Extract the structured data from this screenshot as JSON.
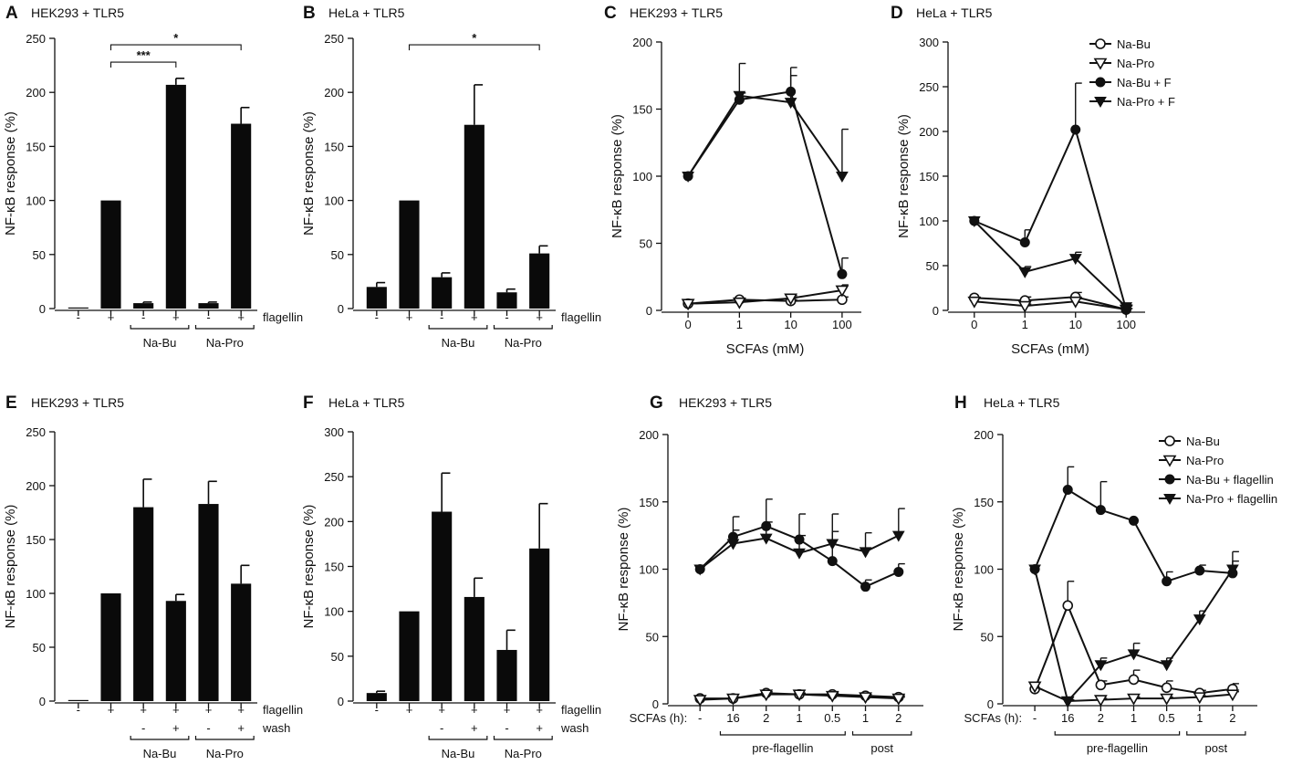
{
  "chart_data": [
    {
      "panel": "A",
      "type": "bar",
      "title": "HEK293 + TLR5",
      "ylabel": "NF-κB response (%)",
      "ylim": [
        0,
        250
      ],
      "yticks": [
        0,
        50,
        100,
        150,
        200,
        250
      ],
      "values": [
        1,
        100,
        5,
        207,
        5,
        171
      ],
      "errors": [
        0,
        0,
        1,
        6,
        1,
        15
      ],
      "rows": [
        {
          "label": "flagellin",
          "values": [
            "-",
            "+",
            "-",
            "+",
            "-",
            "+"
          ]
        }
      ],
      "groups": [
        {
          "label": "Na-Bu",
          "start": 2,
          "end": 3
        },
        {
          "label": "Na-Pro",
          "start": 4,
          "end": 5
        }
      ],
      "significance": [
        {
          "from": 1,
          "to": 3,
          "label": "***",
          "y": 228
        },
        {
          "from": 1,
          "to": 5,
          "label": "*",
          "y": 244
        }
      ]
    },
    {
      "panel": "B",
      "type": "bar",
      "title": "HeLa + TLR5",
      "ylabel": "NF-κB response (%)",
      "ylim": [
        0,
        250
      ],
      "yticks": [
        0,
        50,
        100,
        150,
        200,
        250
      ],
      "values": [
        20,
        100,
        29,
        170,
        15,
        51
      ],
      "errors": [
        4,
        0,
        4,
        37,
        3,
        7
      ],
      "rows": [
        {
          "label": "flagellin",
          "values": [
            "-",
            "+",
            "-",
            "+",
            "-",
            "+"
          ]
        }
      ],
      "groups": [
        {
          "label": "Na-Bu",
          "start": 2,
          "end": 3
        },
        {
          "label": "Na-Pro",
          "start": 4,
          "end": 5
        }
      ],
      "significance": [
        {
          "from": 1,
          "to": 5,
          "label": "*",
          "y": 244
        }
      ]
    },
    {
      "panel": "C",
      "type": "line",
      "title": "HEK293 + TLR5",
      "ylabel": "NF-κB response (%)",
      "xlabel": "SCFAs (mM)",
      "ylim": [
        0,
        200
      ],
      "yticks": [
        0,
        50,
        100,
        150,
        200
      ],
      "categories": [
        "0",
        "1",
        "10",
        "100"
      ],
      "series": [
        {
          "name": "Na-Bu",
          "marker": "circle-open",
          "values": [
            5,
            8,
            7,
            8
          ],
          "errors": [
            0,
            1,
            1,
            2
          ]
        },
        {
          "name": "Na-Pro",
          "marker": "tri-open",
          "values": [
            5,
            6,
            9,
            15
          ],
          "errors": [
            0,
            1,
            2,
            4
          ]
        },
        {
          "name": "Na-Bu + F",
          "marker": "circle-filled",
          "values": [
            100,
            157,
            163,
            27
          ],
          "errors": [
            0,
            5,
            18,
            12
          ]
        },
        {
          "name": "Na-Pro + F",
          "marker": "tri-filled",
          "values": [
            100,
            160,
            155,
            100
          ],
          "errors": [
            0,
            24,
            20,
            35
          ]
        }
      ]
    },
    {
      "panel": "D",
      "type": "line",
      "title": "HeLa + TLR5",
      "ylabel": "NF-κB response (%)",
      "xlabel": "SCFAs (mM)",
      "ylim": [
        0,
        300
      ],
      "yticks": [
        0,
        50,
        100,
        150,
        200,
        250,
        300
      ],
      "categories": [
        "0",
        "1",
        "10",
        "100"
      ],
      "legend": [
        "Na-Bu",
        "Na-Pro",
        "Na-Bu + F",
        "Na-Pro + F"
      ],
      "series": [
        {
          "name": "Na-Bu",
          "marker": "circle-open",
          "values": [
            14,
            11,
            15,
            1
          ],
          "errors": [
            0,
            4,
            5,
            1
          ]
        },
        {
          "name": "Na-Pro",
          "marker": "tri-open",
          "values": [
            10,
            5,
            10,
            1
          ],
          "errors": [
            0,
            2,
            3,
            1
          ]
        },
        {
          "name": "Na-Bu + F",
          "marker": "circle-filled",
          "values": [
            100,
            76,
            202,
            1
          ],
          "errors": [
            0,
            14,
            52,
            4
          ]
        },
        {
          "name": "Na-Pro + F",
          "marker": "tri-filled",
          "values": [
            100,
            43,
            58,
            4
          ],
          "errors": [
            0,
            6,
            7,
            2
          ]
        }
      ]
    },
    {
      "panel": "E",
      "type": "bar",
      "title": "HEK293 + TLR5",
      "ylabel": "NF-κB response (%)",
      "ylim": [
        0,
        250
      ],
      "yticks": [
        0,
        50,
        100,
        150,
        200,
        250
      ],
      "values": [
        1,
        100,
        180,
        93,
        183,
        109
      ],
      "errors": [
        0,
        0,
        26,
        6,
        21,
        17
      ],
      "rows": [
        {
          "label": "flagellin",
          "values": [
            "-",
            "+",
            "+",
            "+",
            "+",
            "+"
          ]
        },
        {
          "label": "wash",
          "values": [
            "",
            "",
            "-",
            "+",
            "-",
            "+"
          ]
        }
      ],
      "groups": [
        {
          "label": "Na-Bu",
          "start": 2,
          "end": 3
        },
        {
          "label": "Na-Pro",
          "start": 4,
          "end": 5
        }
      ]
    },
    {
      "panel": "F",
      "type": "bar",
      "title": "HeLa + TLR5",
      "ylabel": "NF-κB response (%)",
      "ylim": [
        0,
        300
      ],
      "yticks": [
        0,
        50,
        100,
        150,
        200,
        250,
        300
      ],
      "values": [
        9,
        100,
        211,
        116,
        57,
        170
      ],
      "errors": [
        2,
        0,
        43,
        21,
        22,
        50
      ],
      "rows": [
        {
          "label": "flagellin",
          "values": [
            "-",
            "+",
            "+",
            "+",
            "+",
            "+"
          ]
        },
        {
          "label": "wash",
          "values": [
            "",
            "",
            "-",
            "+",
            "-",
            "+"
          ]
        }
      ],
      "groups": [
        {
          "label": "Na-Bu",
          "start": 2,
          "end": 3
        },
        {
          "label": "Na-Pro",
          "start": 4,
          "end": 5
        }
      ]
    },
    {
      "panel": "G",
      "type": "line",
      "title": "HEK293 + TLR5",
      "ylabel": "NF-κB response (%)",
      "xprefix": "SCFAs (h):",
      "ylim": [
        0,
        200
      ],
      "yticks": [
        0,
        50,
        100,
        150,
        200
      ],
      "categories": [
        "-",
        "16",
        "2",
        "1",
        "0.5",
        "1",
        "2"
      ],
      "groups": [
        {
          "label": "pre-flagellin",
          "start": 1,
          "end": 4
        },
        {
          "label": "post",
          "start": 5,
          "end": 6
        }
      ],
      "series": [
        {
          "name": "Na-Bu",
          "marker": "circle-open",
          "values": [
            4,
            4,
            8,
            7,
            7,
            6,
            5
          ],
          "errors": [
            0,
            1,
            1,
            1,
            1,
            1,
            1
          ]
        },
        {
          "name": "Na-Pro",
          "marker": "tri-open",
          "values": [
            3,
            4,
            7,
            7,
            6,
            5,
            4
          ],
          "errors": [
            0,
            1,
            1,
            1,
            1,
            1,
            1
          ]
        },
        {
          "name": "Na-Bu + flagellin",
          "marker": "circle-filled",
          "values": [
            100,
            124,
            132,
            122,
            106,
            87,
            98
          ],
          "errors": [
            0,
            15,
            20,
            19,
            22,
            5,
            6
          ]
        },
        {
          "name": "Na-Pro + flagellin",
          "marker": "tri-filled",
          "values": [
            100,
            119,
            123,
            112,
            119,
            113,
            125
          ],
          "errors": [
            0,
            10,
            12,
            13,
            22,
            14,
            20
          ]
        }
      ]
    },
    {
      "panel": "H",
      "type": "line",
      "title": "HeLa + TLR5",
      "ylabel": "NF-κB response (%)",
      "xprefix": "SCFAs (h):",
      "ylim": [
        0,
        200
      ],
      "yticks": [
        0,
        50,
        100,
        150,
        200
      ],
      "categories": [
        "-",
        "16",
        "2",
        "1",
        "0.5",
        "1",
        "2"
      ],
      "groups": [
        {
          "label": "pre-flagellin",
          "start": 1,
          "end": 4
        },
        {
          "label": "post",
          "start": 5,
          "end": 6
        }
      ],
      "legend": [
        "Na-Bu",
        "Na-Pro",
        "Na-Bu + flagellin",
        "Na-Pro + flagellin"
      ],
      "series": [
        {
          "name": "Na-Bu",
          "marker": "circle-open",
          "values": [
            11,
            73,
            14,
            18,
            12,
            8,
            11
          ],
          "errors": [
            0,
            18,
            3,
            7,
            5,
            2,
            4
          ]
        },
        {
          "name": "Na-Pro",
          "marker": "tri-open",
          "values": [
            13,
            2,
            3,
            4,
            4,
            5,
            7
          ],
          "errors": [
            0,
            1,
            1,
            1,
            1,
            1,
            2
          ]
        },
        {
          "name": "Na-Bu + flagellin",
          "marker": "circle-filled",
          "values": [
            100,
            159,
            144,
            136,
            91,
            99,
            97
          ],
          "errors": [
            0,
            17,
            21,
            0,
            7,
            4,
            16
          ]
        },
        {
          "name": "Na-Pro + flagellin",
          "marker": "tri-filled",
          "values": [
            100,
            2,
            29,
            37,
            29,
            63,
            100
          ],
          "errors": [
            0,
            1,
            5,
            8,
            5,
            6,
            6
          ]
        }
      ]
    }
  ]
}
